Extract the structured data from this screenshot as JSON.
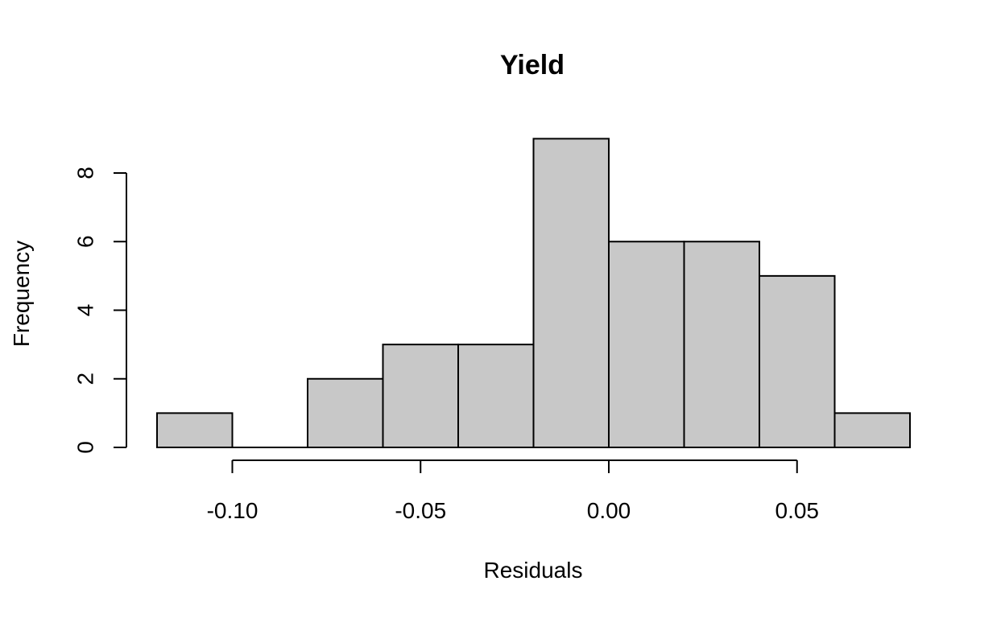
{
  "chart_data": {
    "type": "histogram",
    "title": "Yield",
    "xlabel": "Residuals",
    "ylabel": "Frequency",
    "bins": [
      {
        "x0": -0.12,
        "x1": -0.1,
        "count": 1
      },
      {
        "x0": -0.1,
        "x1": -0.08,
        "count": 0
      },
      {
        "x0": -0.08,
        "x1": -0.06,
        "count": 2
      },
      {
        "x0": -0.06,
        "x1": -0.04,
        "count": 3
      },
      {
        "x0": -0.04,
        "x1": -0.02,
        "count": 3
      },
      {
        "x0": -0.02,
        "x1": 0.0,
        "count": 9
      },
      {
        "x0": 0.0,
        "x1": 0.02,
        "count": 6
      },
      {
        "x0": 0.02,
        "x1": 0.04,
        "count": 6
      },
      {
        "x0": 0.04,
        "x1": 0.06,
        "count": 5
      },
      {
        "x0": 0.06,
        "x1": 0.08,
        "count": 1
      }
    ],
    "x_ticks": [
      -0.1,
      -0.05,
      0.0,
      0.05
    ],
    "x_tick_labels": [
      "-0.10",
      "-0.05",
      "0.00",
      "0.05"
    ],
    "y_ticks": [
      0,
      2,
      4,
      6,
      8
    ],
    "y_tick_labels": [
      "0",
      "2",
      "4",
      "6",
      "8"
    ],
    "xlim": [
      -0.12,
      0.08
    ],
    "ylim": [
      0,
      9
    ],
    "grid": false,
    "bar_color": "#c8c8c8",
    "edge_color": "#000000"
  }
}
